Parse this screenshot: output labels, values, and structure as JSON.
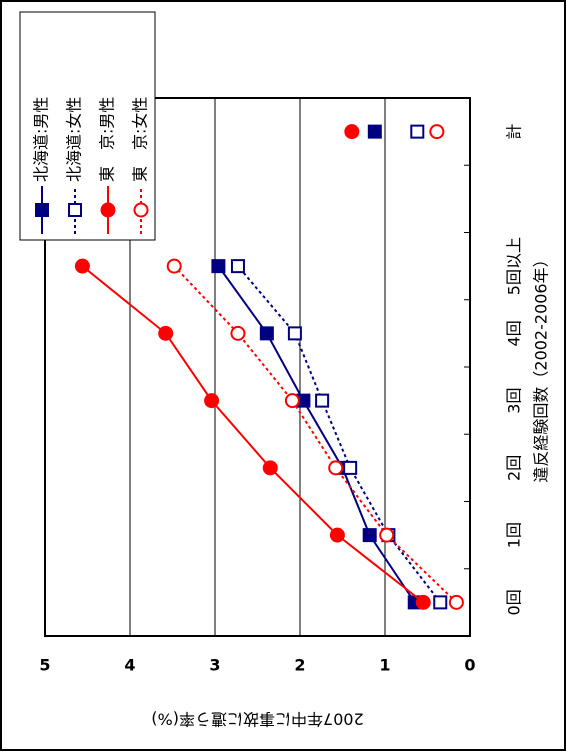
{
  "chart_data": {
    "type": "line",
    "x_label": "違反経験回数（2002-2006年）",
    "y_label": "2007年中に事故に遭う率(%)",
    "categories": [
      "0回",
      "1回",
      "2回",
      "3回",
      "4回",
      "5回以上",
      null,
      "計"
    ],
    "ylim": [
      0,
      5
    ],
    "yticks": [
      0,
      1,
      2,
      3,
      4,
      5
    ],
    "grid": true,
    "legend": "top-right",
    "series": [
      {
        "name": "北海道:男性",
        "color": "#000080",
        "marker": "square",
        "filled": true,
        "dashed": false,
        "values": [
          0.65,
          1.18,
          1.5,
          1.96,
          2.39,
          2.96,
          null,
          1.12
        ]
      },
      {
        "name": "北海道:女性",
        "color": "#000080",
        "marker": "square",
        "filled": false,
        "dashed": true,
        "values": [
          0.35,
          0.96,
          1.41,
          1.74,
          2.06,
          2.73,
          null,
          0.62
        ]
      },
      {
        "name": "東　京:男性",
        "color": "#ff0000",
        "marker": "circle",
        "filled": true,
        "dashed": false,
        "values": [
          0.55,
          1.56,
          2.35,
          3.04,
          3.58,
          4.56,
          null,
          1.39
        ]
      },
      {
        "name": "東　京:女性",
        "color": "#ff0000",
        "marker": "circle",
        "filled": false,
        "dashed": true,
        "values": [
          0.16,
          0.98,
          1.58,
          2.09,
          2.73,
          3.48,
          null,
          0.39
        ]
      }
    ]
  }
}
